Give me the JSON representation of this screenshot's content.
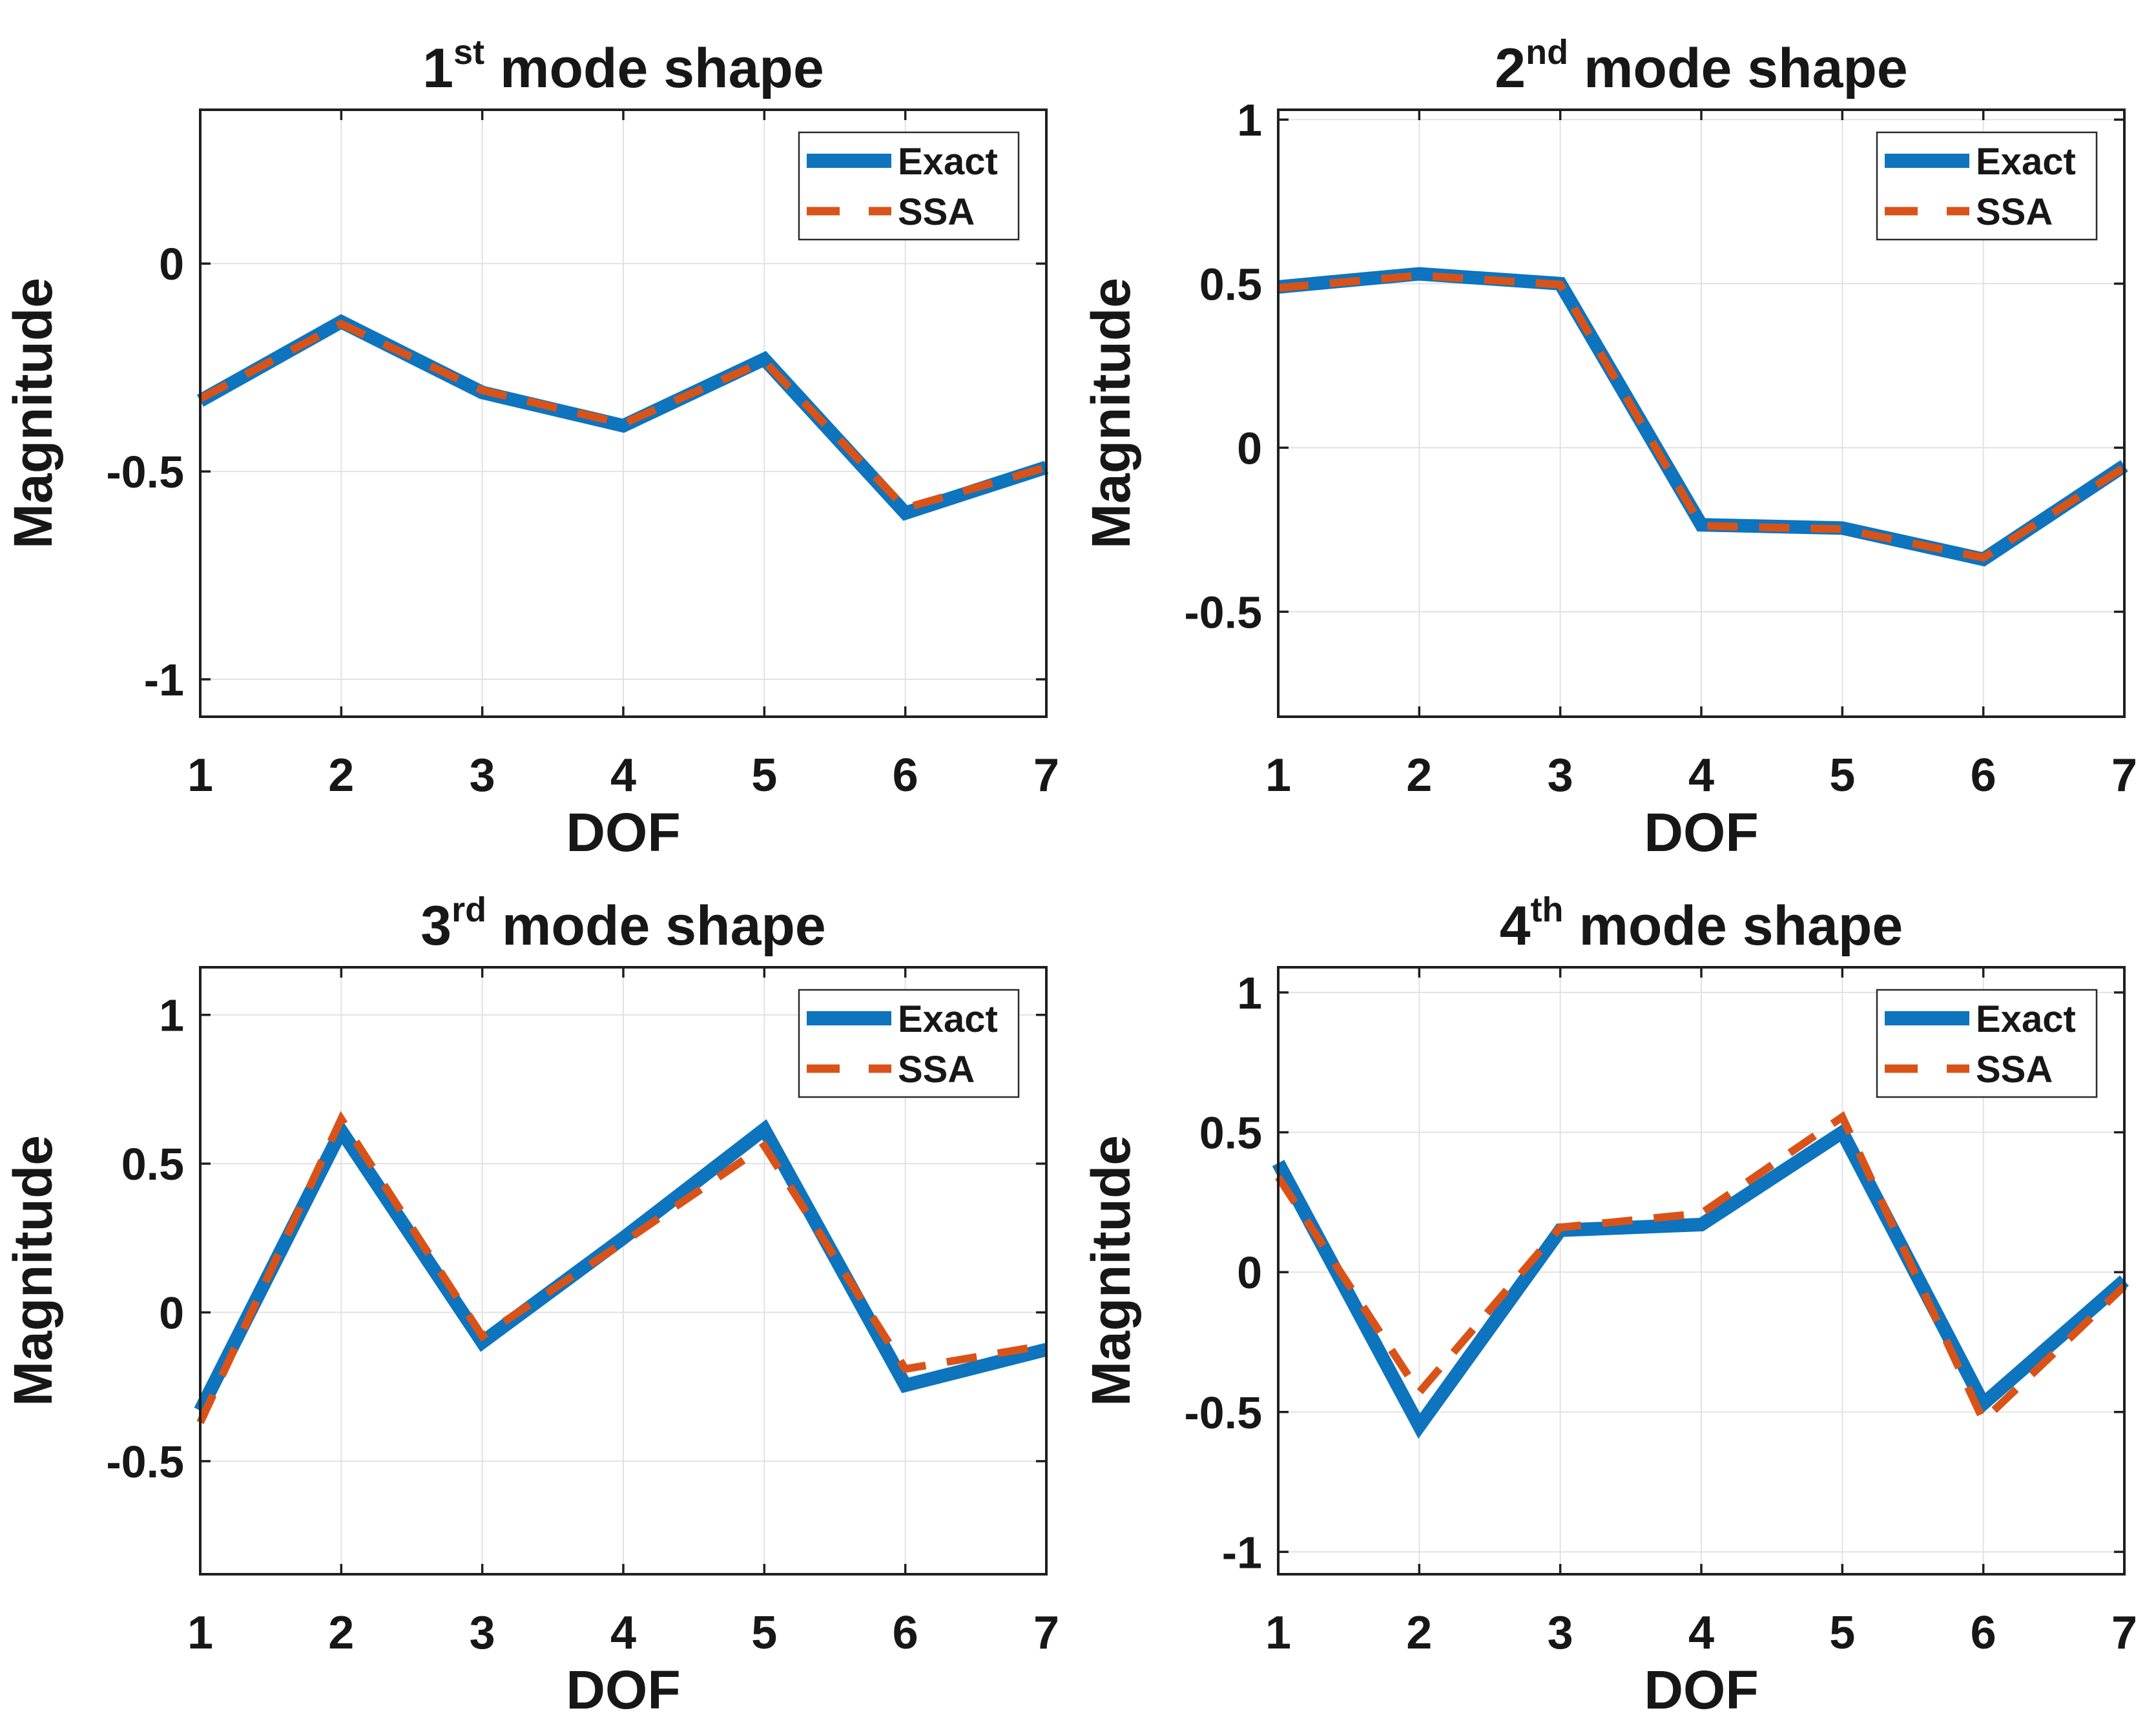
{
  "figure": {
    "background": "#ffffff",
    "rows": 2,
    "columns": 2
  },
  "styles": {
    "exact_color": "#0D74BD",
    "ssa_color": "#D95319",
    "grid_color": "#E2E2E2",
    "axis_color": "#1F1F1F",
    "text_color": "#171717",
    "legend_border": "#2B2B2B",
    "legend_background": "#FFFFFF"
  },
  "chart_data": [
    {
      "type": "line",
      "title": "1st mode shape",
      "title_parts": {
        "base": "1",
        "sup": "st",
        "rest": " mode shape"
      },
      "xlabel": "DOF",
      "ylabel": "Magnitude",
      "x": [
        1,
        2,
        3,
        4,
        5,
        6,
        7
      ],
      "xlim": [
        1,
        7
      ],
      "ylim": [
        -1.09,
        0.37
      ],
      "xticks": [
        1,
        2,
        3,
        4,
        5,
        6,
        7
      ],
      "xtick_labels": [
        "1",
        "2",
        "3",
        "4",
        "5",
        "6",
        "7"
      ],
      "yticks": [
        0,
        -0.5,
        -1
      ],
      "ytick_labels": [
        "0",
        "-0.5",
        "-1"
      ],
      "grid": true,
      "legend": {
        "position": "top-right",
        "entries": [
          "Exact",
          "SSA"
        ]
      },
      "series": [
        {
          "name": "Exact",
          "line": "solid",
          "color": "exact",
          "values": [
            -0.33,
            -0.14,
            -0.31,
            -0.39,
            -0.23,
            -0.6,
            -0.49
          ]
        },
        {
          "name": "SSA",
          "line": "dashed",
          "color": "ssa",
          "values": [
            -0.325,
            -0.145,
            -0.305,
            -0.385,
            -0.235,
            -0.588,
            -0.49
          ]
        }
      ]
    },
    {
      "type": "line",
      "title": "2nd mode shape",
      "title_parts": {
        "base": "2",
        "sup": "nd",
        "rest": " mode shape"
      },
      "xlabel": "DOF",
      "ylabel": "Magnitude",
      "x": [
        1,
        2,
        3,
        4,
        5,
        6,
        7
      ],
      "xlim": [
        1,
        7
      ],
      "ylim": [
        -0.82,
        1.03
      ],
      "xticks": [
        1,
        2,
        3,
        4,
        5,
        6,
        7
      ],
      "xtick_labels": [
        "1",
        "2",
        "3",
        "4",
        "5",
        "6",
        "7"
      ],
      "yticks": [
        1,
        0.5,
        0,
        -0.5
      ],
      "ytick_labels": [
        "1",
        "0.5",
        "0",
        "-0.5"
      ],
      "grid": true,
      "legend": {
        "position": "top-right",
        "entries": [
          "Exact",
          "SSA"
        ]
      },
      "series": [
        {
          "name": "Exact",
          "line": "solid",
          "color": "exact",
          "values": [
            0.49,
            0.53,
            0.5,
            -0.235,
            -0.245,
            -0.34,
            -0.055
          ]
        },
        {
          "name": "SSA",
          "line": "dashed",
          "color": "ssa",
          "values": [
            0.487,
            0.525,
            0.497,
            -0.238,
            -0.248,
            -0.335,
            -0.06
          ]
        }
      ]
    },
    {
      "type": "line",
      "title": "3rd mode shape",
      "title_parts": {
        "base": "3",
        "sup": "rd",
        "rest": " mode shape"
      },
      "xlabel": "DOF",
      "ylabel": "Magnitude",
      "x": [
        1,
        2,
        3,
        4,
        5,
        6,
        7
      ],
      "xlim": [
        1,
        7
      ],
      "ylim": [
        -0.88,
        1.16
      ],
      "xticks": [
        1,
        2,
        3,
        4,
        5,
        6,
        7
      ],
      "xtick_labels": [
        "1",
        "2",
        "3",
        "4",
        "5",
        "6",
        "7"
      ],
      "yticks": [
        1,
        0.5,
        0,
        -0.5
      ],
      "ytick_labels": [
        "1",
        "0.5",
        "0",
        "-0.5"
      ],
      "grid": true,
      "legend": {
        "position": "top-right",
        "entries": [
          "Exact",
          "SSA"
        ]
      },
      "series": [
        {
          "name": "Exact",
          "line": "solid",
          "color": "exact",
          "values": [
            -0.33,
            0.61,
            -0.1,
            0.25,
            0.615,
            -0.245,
            -0.125
          ]
        },
        {
          "name": "SSA",
          "line": "dashed",
          "color": "ssa",
          "values": [
            -0.37,
            0.65,
            -0.08,
            0.235,
            0.56,
            -0.19,
            -0.11
          ]
        }
      ]
    },
    {
      "type": "line",
      "title": "4th mode shape",
      "title_parts": {
        "base": "4",
        "sup": "th",
        "rest": " mode shape"
      },
      "xlabel": "DOF",
      "ylabel": "Magnitude",
      "x": [
        1,
        2,
        3,
        4,
        5,
        6,
        7
      ],
      "xlim": [
        1,
        7
      ],
      "ylim": [
        -1.08,
        1.09
      ],
      "xticks": [
        1,
        2,
        3,
        4,
        5,
        6,
        7
      ],
      "xtick_labels": [
        "1",
        "2",
        "3",
        "4",
        "5",
        "6",
        "7"
      ],
      "yticks": [
        1,
        0.5,
        0,
        -0.5,
        -1
      ],
      "ytick_labels": [
        "1",
        "0.5",
        "0",
        "-0.5",
        "-1"
      ],
      "grid": true,
      "legend": {
        "position": "top-right",
        "entries": [
          "Exact",
          "SSA"
        ]
      },
      "series": [
        {
          "name": "Exact",
          "line": "solid",
          "color": "exact",
          "values": [
            0.39,
            -0.55,
            0.15,
            0.17,
            0.5,
            -0.47,
            -0.03
          ]
        },
        {
          "name": "SSA",
          "line": "dashed",
          "color": "ssa",
          "values": [
            0.34,
            -0.43,
            0.16,
            0.21,
            0.555,
            -0.53,
            -0.05
          ]
        }
      ]
    }
  ]
}
